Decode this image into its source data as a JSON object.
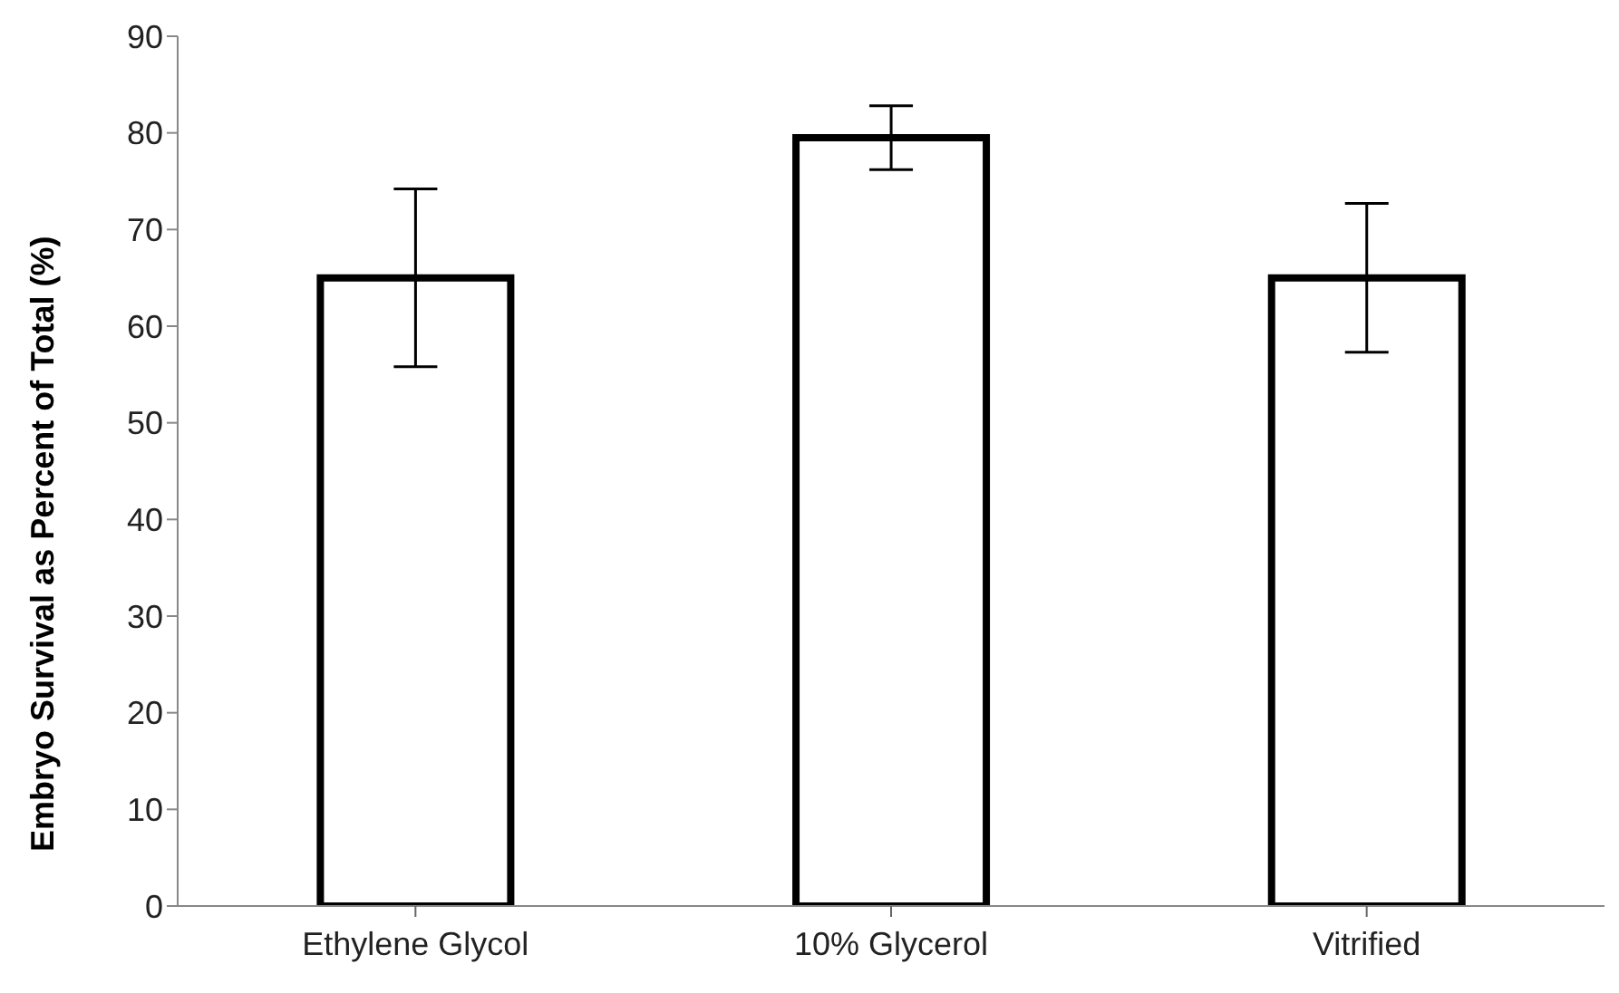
{
  "chart_data": {
    "type": "bar",
    "ylabel": "Embryo Survival as Percent of Total  (%)",
    "categories": [
      "Ethylene Glycol",
      "10% Glycerol",
      "Vitrified"
    ],
    "values": [
      65,
      79.5,
      65
    ],
    "errors": [
      9.2,
      3.3,
      7.7
    ],
    "color": "#000000",
    "ylim": [
      0,
      90
    ],
    "yticks": [
      0,
      10,
      20,
      30,
      40,
      50,
      60,
      70,
      80,
      90
    ],
    "grid": false,
    "legend": false
  }
}
